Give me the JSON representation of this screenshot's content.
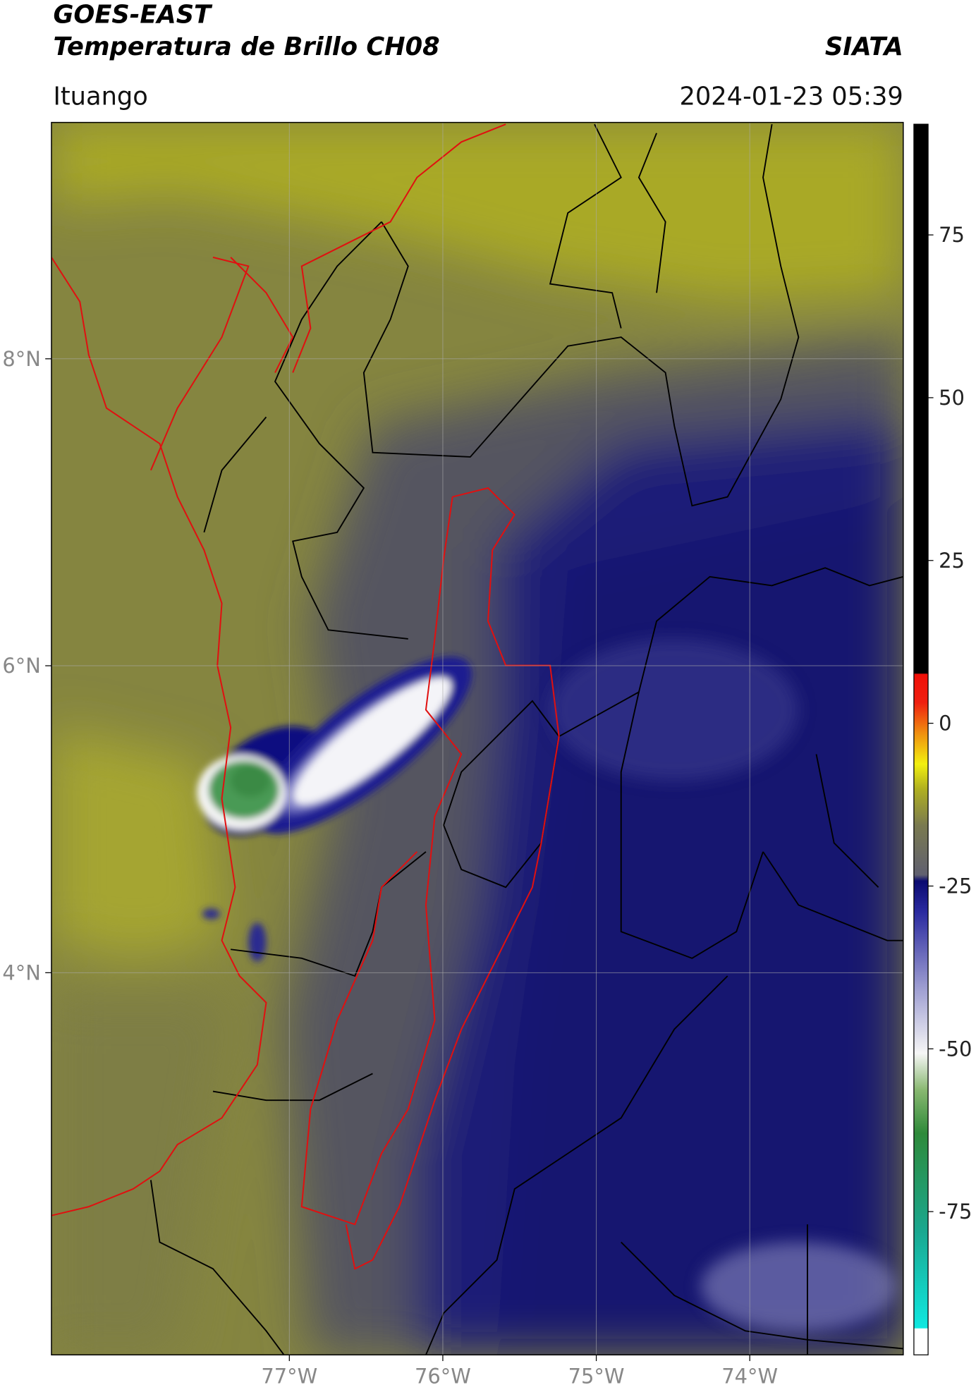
{
  "header": {
    "title_line1": "GOES-EAST",
    "title_line2": "Temperatura de Brillo CH08",
    "source": "SIATA",
    "location": "Ituango",
    "datetime": "2024-01-23 05:39"
  },
  "map": {
    "xlim": [
      -78.55,
      -73.0
    ],
    "ylim": [
      1.51,
      9.54
    ],
    "lon_ticks": [
      {
        "value": -77,
        "label": "77°W"
      },
      {
        "value": -76,
        "label": "76°W"
      },
      {
        "value": -75,
        "label": "75°W"
      },
      {
        "value": -74,
        "label": "74°W"
      }
    ],
    "lat_ticks": [
      {
        "value": 8,
        "label": "8°N"
      },
      {
        "value": 6,
        "label": "6°N"
      },
      {
        "value": 4,
        "label": "4°N"
      }
    ]
  },
  "colorbar": {
    "lim": [
      -97,
      92
    ],
    "ticks": [
      75,
      50,
      25,
      0,
      -25,
      -50,
      -75
    ]
  }
}
